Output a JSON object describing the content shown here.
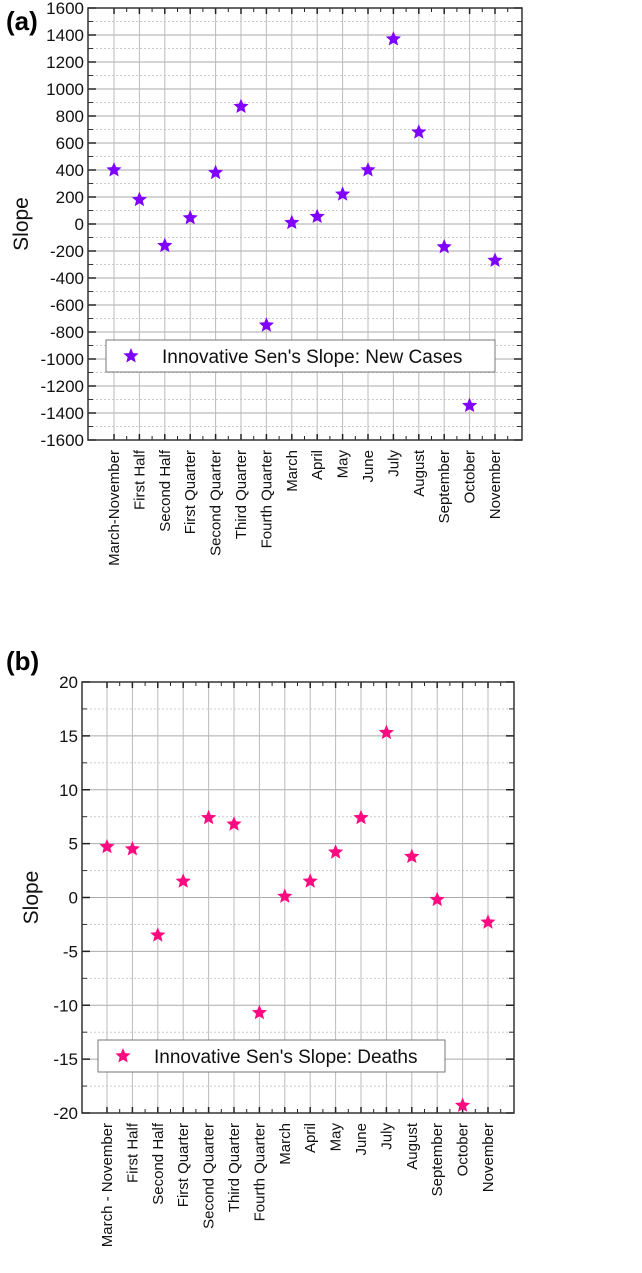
{
  "chart_data": [
    {
      "panel": "(a)",
      "type": "scatter",
      "ylabel": "Slope",
      "xlabel": "",
      "ylim": [
        -1600,
        1600
      ],
      "yticks": [
        1600,
        1400,
        1200,
        1000,
        800,
        600,
        400,
        200,
        0,
        -200,
        -400,
        -600,
        -800,
        -1000,
        -1200,
        -1400,
        -1600
      ],
      "grid": true,
      "legend_position": "bottom-center",
      "marker_color": "#7f00ff",
      "categories": [
        "March-November",
        "First Half",
        "Second Half",
        "First Quarter",
        "Second Quarter",
        "Third Quarter",
        "Fourth Quarter",
        "March",
        "April",
        "May",
        "June",
        "July",
        "August",
        "September",
        "October",
        "November"
      ],
      "series": [
        {
          "name": "Innovative Sen's Slope: New Cases",
          "values": [
            400,
            180,
            -160,
            45,
            380,
            870,
            -750,
            10,
            55,
            220,
            400,
            1370,
            680,
            -170,
            -1345,
            -270
          ]
        }
      ]
    },
    {
      "panel": "(b)",
      "type": "scatter",
      "ylabel": "Slope",
      "xlabel": "",
      "ylim": [
        -20,
        20
      ],
      "yticks": [
        20,
        15,
        10,
        5,
        0,
        -5,
        -10,
        -15,
        -20
      ],
      "grid": true,
      "legend_position": "bottom-center",
      "marker_color": "#ff0a80",
      "categories": [
        "March - November",
        "First Half",
        "Second Half",
        "First Quarter",
        "Second Quarter",
        "Third Quarter",
        "Fourth Quarter",
        "March",
        "April",
        "May",
        "June",
        "July",
        "August",
        "September",
        "October",
        "November"
      ],
      "series": [
        {
          "name": "Innovative Sen's Slope: Deaths",
          "values": [
            4.7,
            4.5,
            -3.5,
            1.5,
            7.4,
            6.8,
            -10.7,
            0.1,
            1.5,
            4.2,
            7.4,
            15.3,
            3.8,
            -0.2,
            -19.3,
            -2.3
          ]
        }
      ]
    }
  ]
}
